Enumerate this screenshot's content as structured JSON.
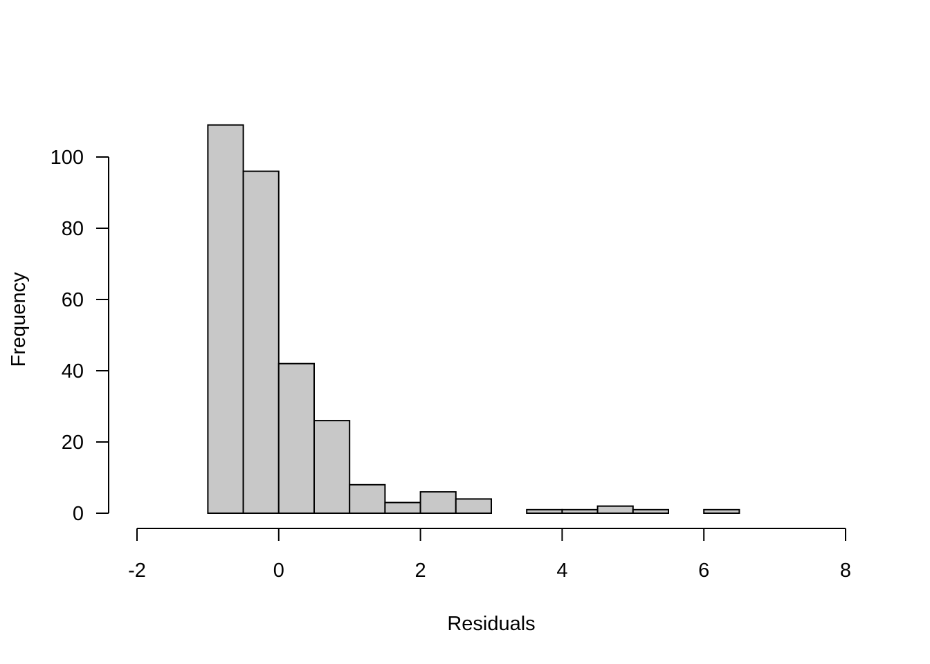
{
  "chart_data": {
    "type": "bar",
    "title": "",
    "xlabel": "Residuals",
    "ylabel": "Frequency",
    "bin_width": 0.5,
    "bin_edges": [
      -1.0,
      -0.5,
      0.0,
      0.5,
      1.0,
      1.5,
      2.0,
      2.5,
      3.0,
      3.5,
      4.0,
      4.5,
      5.0,
      5.5,
      6.0,
      6.5
    ],
    "values": [
      109,
      96,
      42,
      26,
      8,
      3,
      6,
      4,
      0,
      1,
      1,
      2,
      1,
      0,
      1
    ],
    "xlim": [
      -2,
      8
    ],
    "ylim": [
      0,
      100
    ],
    "x_ticks": [
      -2,
      0,
      2,
      4,
      6,
      8
    ],
    "x_tick_labels": [
      "-2",
      "0",
      "2",
      "4",
      "6",
      "8"
    ],
    "y_ticks": [
      0,
      20,
      40,
      60,
      80,
      100
    ],
    "y_tick_labels": [
      "0",
      "20",
      "40",
      "60",
      "80",
      "100"
    ],
    "bar_color": "#c8c8c8",
    "grid": false,
    "legend": "none"
  }
}
